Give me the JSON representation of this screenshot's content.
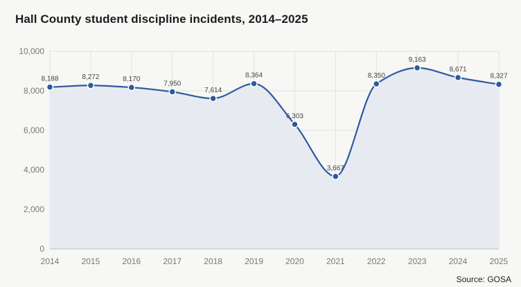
{
  "header": {
    "title": "Hall County student discipline incidents, 2014–2025"
  },
  "footer": {
    "source": "Source: GOSA"
  },
  "colors": {
    "line": "#2d5a9e",
    "area": "#e7ebf1",
    "grid": "#e2e2e2",
    "background": "#f7f7f5"
  },
  "chart_data": {
    "type": "area",
    "title": "Hall County student discipline incidents, 2014–2025",
    "x": [
      "2014",
      "2015",
      "2016",
      "2017",
      "2018",
      "2019",
      "2020",
      "2021",
      "2022",
      "2023",
      "2024",
      "2025"
    ],
    "values": [
      8188,
      8272,
      8170,
      7950,
      7614,
      8364,
      6303,
      3667,
      8350,
      9163,
      8671,
      8327
    ],
    "data_labels": [
      "8,188",
      "8,272",
      "8,170",
      "7,950",
      "7,614",
      "8,364",
      "6,303",
      "3,667",
      "8,350",
      "9,163",
      "8,671",
      "8,327"
    ],
    "yticks": [
      0,
      2000,
      4000,
      6000,
      8000,
      10000
    ],
    "ytick_labels": [
      "0",
      "2,000",
      "4,000",
      "6,000",
      "8,000",
      "10,000"
    ],
    "ylim": [
      0,
      10000
    ],
    "xlabel": "",
    "ylabel": "",
    "grid": true,
    "smooth": true
  }
}
